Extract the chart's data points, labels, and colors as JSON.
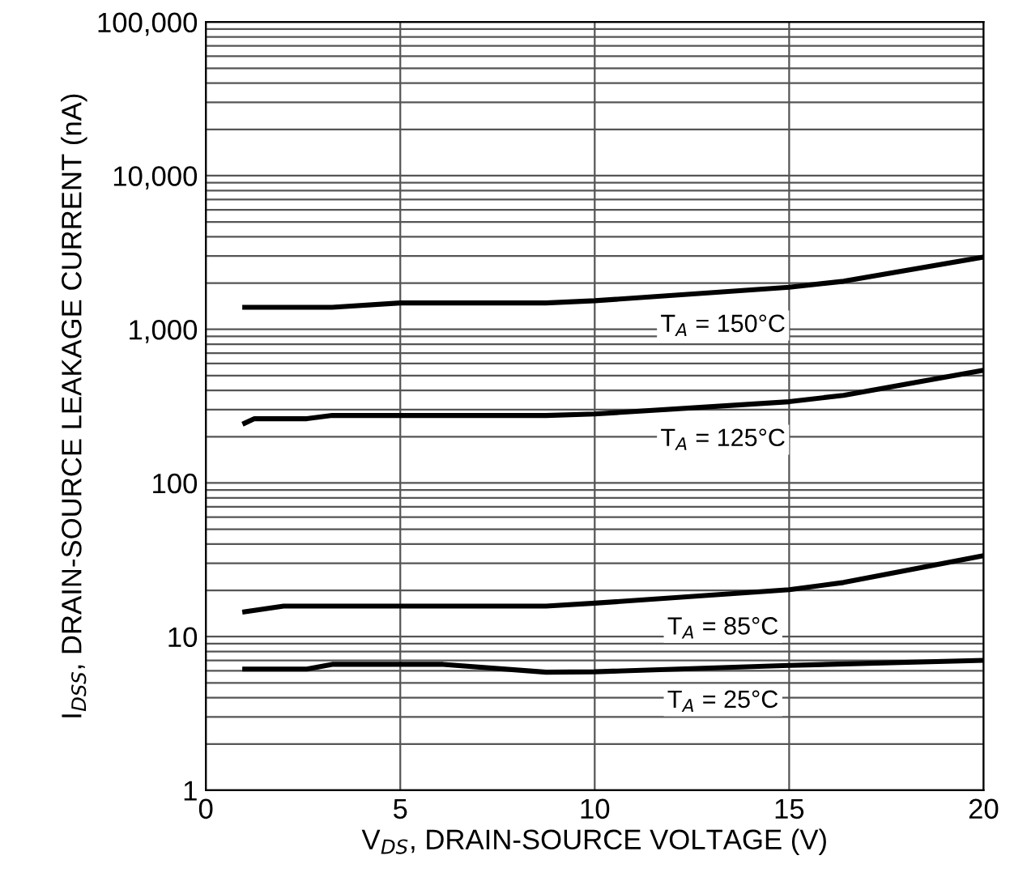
{
  "chart_data": {
    "type": "line",
    "xlabel": "V$_{DS}$, DRAIN-SOURCE VOLTAGE (V)",
    "ylabel": "I$_{DSS}$, DRAIN-SOURCE LEAKAGE CURRENT (nA)",
    "log": "y",
    "grid": true,
    "legend": false,
    "marker": "none",
    "line_style": "solid",
    "xlim": [
      0,
      20
    ],
    "xticks": [
      0,
      5,
      10,
      15,
      20
    ],
    "ylim": [
      1,
      100000
    ],
    "yticks": [
      1,
      10,
      100,
      {
        "value": 1000,
        "label": "1,000"
      },
      {
        "value": 10000,
        "label": "10,000"
      },
      {
        "value": 100000,
        "label": "100,000"
      }
    ],
    "series": [
      {
        "name": "T$_{A}$ = 150°C",
        "color": "#000000",
        "x": [
          1,
          3.25,
          5,
          8.75,
          10,
          15,
          16.4,
          20
        ],
        "values": [
          1390,
          1390,
          1485,
          1485,
          1535,
          1880,
          2055,
          2950
        ]
      },
      {
        "name": "T$_{A}$ = 125°C",
        "color": "#000000",
        "x": [
          1,
          1.25,
          2.6,
          3.25,
          8.75,
          10,
          15,
          16.4,
          20
        ],
        "values": [
          245,
          262,
          262,
          275,
          275,
          281,
          338,
          372,
          541
        ]
      },
      {
        "name": "T$_{A}$ = 85°C",
        "color": "#000000",
        "x": [
          1,
          2,
          8.75,
          10,
          15,
          16.4,
          20
        ],
        "values": [
          14.5,
          15.8,
          15.8,
          16.5,
          20.2,
          22.5,
          33.6
        ]
      },
      {
        "name": "T$_{A}$ = 25°C",
        "color": "#000000",
        "x": [
          1,
          2.6,
          3.25,
          6.1,
          8.75,
          10,
          15,
          20
        ],
        "values": [
          6.15,
          6.15,
          6.6,
          6.6,
          5.87,
          5.9,
          6.5,
          7.0
        ]
      }
    ]
  }
}
